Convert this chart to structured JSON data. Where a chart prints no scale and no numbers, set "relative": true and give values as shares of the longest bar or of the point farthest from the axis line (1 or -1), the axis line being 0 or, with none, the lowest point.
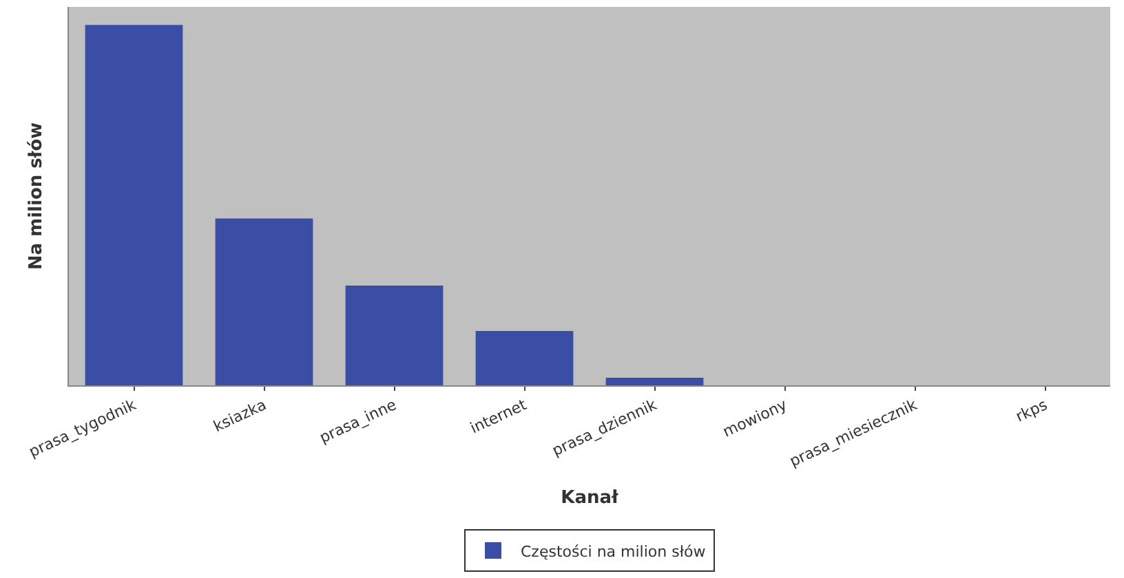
{
  "chart_data": {
    "type": "bar",
    "relative": true,
    "xlabel": "Kanał",
    "ylabel": "Na milion słów",
    "categories": [
      "prasa_tygodnik",
      "ksiazka",
      "prasa_inne",
      "internet",
      "prasa_dziennik",
      "mowiony",
      "prasa_miesiecznik",
      "rkps"
    ],
    "series": [
      {
        "name": "Częstości na milion słów",
        "color": "#3a4ea6",
        "values": [
          1,
          0.463,
          0.277,
          0.151,
          0.021,
          0,
          0,
          0
        ]
      }
    ],
    "legend": "bottom",
    "grid": false
  }
}
